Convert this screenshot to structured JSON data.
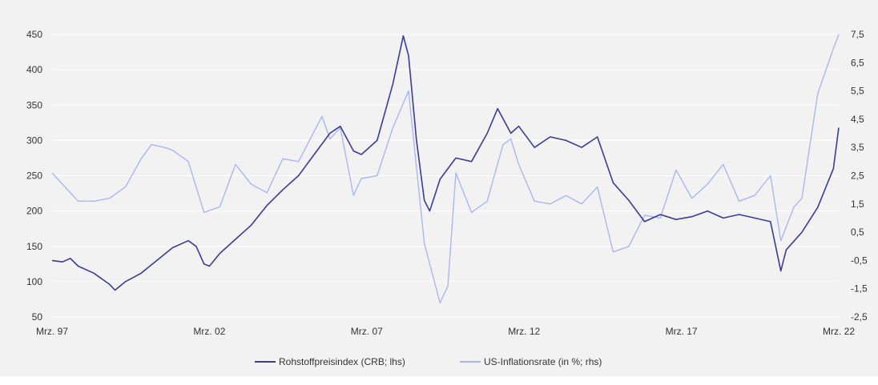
{
  "chart_data": {
    "type": "line",
    "title": "",
    "xlabel": "",
    "ylabel": "",
    "x_ticks": [
      "Mrz. 97",
      "Mrz. 02",
      "Mrz. 07",
      "Mrz. 12",
      "Mrz. 17",
      "Mrz. 22"
    ],
    "x_range": [
      1997.17,
      2022.17
    ],
    "y_left": {
      "ticks": [
        "450",
        "400",
        "350",
        "300",
        "250",
        "200",
        "150",
        "100",
        "50"
      ],
      "range": [
        50,
        450
      ]
    },
    "y_right": {
      "ticks": [
        "7,5",
        "6,5",
        "5,5",
        "4,5",
        "3,5",
        "2,5",
        "1,5",
        "0,5",
        "-0,5",
        "-1,5",
        "-2,5"
      ],
      "range": [
        -2.5,
        7.5
      ]
    },
    "grid": "horizontal",
    "legend_position": "bottom",
    "series": [
      {
        "name": "Rohstoffpreisindex (CRB; lhs)",
        "axis": "left",
        "color": "#3b3b98",
        "x": [
          1997.17,
          1997.5,
          1997.75,
          1998.0,
          1998.5,
          1999.0,
          1999.17,
          1999.5,
          2000.0,
          2000.5,
          2001.0,
          2001.5,
          2001.75,
          2002.0,
          2002.17,
          2002.5,
          2003.0,
          2003.5,
          2004.0,
          2004.5,
          2005.0,
          2005.5,
          2006.0,
          2006.33,
          2006.75,
          2007.0,
          2007.5,
          2007.75,
          2008.0,
          2008.33,
          2008.5,
          2008.75,
          2009.0,
          2009.17,
          2009.5,
          2010.0,
          2010.5,
          2011.0,
          2011.33,
          2011.75,
          2012.0,
          2012.5,
          2013.0,
          2013.5,
          2014.0,
          2014.5,
          2015.0,
          2015.5,
          2016.0,
          2016.5,
          2017.0,
          2017.5,
          2018.0,
          2018.5,
          2019.0,
          2019.5,
          2020.0,
          2020.33,
          2020.5,
          2021.0,
          2021.5,
          2022.0,
          2022.17
        ],
        "y": [
          130,
          128,
          133,
          122,
          112,
          96,
          88,
          100,
          112,
          130,
          148,
          158,
          150,
          125,
          122,
          140,
          160,
          180,
          208,
          230,
          250,
          280,
          310,
          320,
          285,
          280,
          300,
          340,
          380,
          448,
          420,
          300,
          215,
          200,
          245,
          275,
          270,
          310,
          345,
          310,
          320,
          290,
          305,
          300,
          290,
          305,
          240,
          215,
          185,
          195,
          188,
          192,
          200,
          190,
          195,
          190,
          185,
          115,
          145,
          170,
          205,
          260,
          318
        ]
      },
      {
        "name": "US-Inflationsrate (in %; rhs)",
        "axis": "right",
        "color": "#a9b7f0",
        "x": [
          1997.17,
          1997.5,
          1998.0,
          1998.5,
          1999.0,
          1999.5,
          2000.0,
          2000.33,
          2000.75,
          2001.0,
          2001.5,
          2001.75,
          2002.0,
          2002.5,
          2003.0,
          2003.5,
          2004.0,
          2004.5,
          2005.0,
          2005.75,
          2006.0,
          2006.33,
          2006.75,
          2007.0,
          2007.5,
          2008.0,
          2008.5,
          2009.0,
          2009.5,
          2009.75,
          2010.0,
          2010.5,
          2011.0,
          2011.5,
          2011.75,
          2012.0,
          2012.5,
          2013.0,
          2013.5,
          2014.0,
          2014.5,
          2015.0,
          2015.5,
          2016.0,
          2016.5,
          2017.0,
          2017.5,
          2018.0,
          2018.5,
          2019.0,
          2019.5,
          2020.0,
          2020.33,
          2020.75,
          2021.0,
          2021.5,
          2022.0,
          2022.17
        ],
        "y": [
          2.6,
          2.2,
          1.6,
          1.6,
          1.7,
          2.1,
          3.1,
          3.6,
          3.5,
          3.4,
          3.0,
          2.1,
          1.2,
          1.4,
          2.9,
          2.2,
          1.9,
          3.1,
          3.0,
          4.6,
          3.8,
          4.2,
          1.8,
          2.4,
          2.5,
          4.2,
          5.5,
          0.1,
          -2.0,
          -1.4,
          2.6,
          1.2,
          1.6,
          3.6,
          3.8,
          2.9,
          1.6,
          1.5,
          1.8,
          1.5,
          2.1,
          -0.2,
          0.0,
          1.1,
          1.0,
          2.7,
          1.7,
          2.2,
          2.9,
          1.6,
          1.8,
          2.5,
          0.2,
          1.4,
          1.7,
          5.4,
          7.0,
          7.5
        ]
      }
    ]
  },
  "colors": {
    "panel_bg": "#f2f2f2",
    "grid": "#ffffff",
    "axis_text": "#333333"
  }
}
